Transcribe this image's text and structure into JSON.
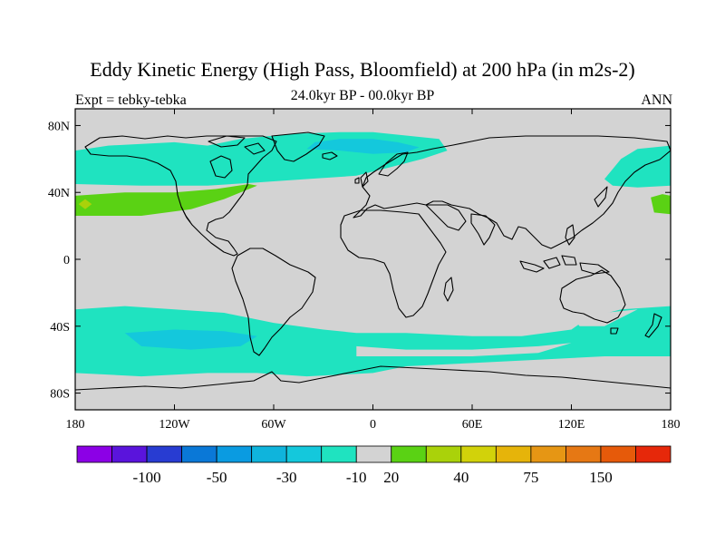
{
  "title": "Eddy Kinetic Energy (High Pass, Bloomfield) at 200 hPa (in m2s-2)",
  "subtitle_left": "Expt = tebky-tebka",
  "subtitle_center": "24.0kyr BP - 00.0kyr BP",
  "subtitle_right": "ANN",
  "colors": {
    "land_outline": "#000000",
    "zero_band": "#d3d3d3",
    "neg_10": "#1fe3c0",
    "neg_30": "#14c8dc",
    "pos_20": "#5ad214",
    "pos_40": "#aad20a"
  },
  "chart_data": {
    "type": "heatmap",
    "projection": "cylindrical-equidistant",
    "lon_range": [
      -180,
      180
    ],
    "lat_range": [
      -90,
      90
    ],
    "x_ticks": [
      {
        "value": -180,
        "label": "180"
      },
      {
        "value": -120,
        "label": "120W"
      },
      {
        "value": -60,
        "label": "60W"
      },
      {
        "value": 0,
        "label": "0"
      },
      {
        "value": 60,
        "label": "60E"
      },
      {
        "value": 120,
        "label": "120E"
      },
      {
        "value": 180,
        "label": "180"
      }
    ],
    "y_ticks": [
      {
        "value": 80,
        "label": "80N"
      },
      {
        "value": 40,
        "label": "40N"
      },
      {
        "value": 0,
        "label": "0"
      },
      {
        "value": -40,
        "label": "40S"
      },
      {
        "value": -80,
        "label": "80S"
      }
    ],
    "colorbar": {
      "colors": [
        "#8c00e6",
        "#5a14dc",
        "#283cd2",
        "#0a78d7",
        "#0a9be1",
        "#0fb4dc",
        "#14c8dc",
        "#1fe3c0",
        "#d3d3d3",
        "#5ad214",
        "#aad20a",
        "#d2d20a",
        "#e6b40a",
        "#e69614",
        "#e67814",
        "#e65a0a",
        "#e6280a"
      ],
      "labels": [
        {
          "after_box": 2,
          "text": "-100"
        },
        {
          "after_box": 4,
          "text": "-50"
        },
        {
          "after_box": 6,
          "text": "-30"
        },
        {
          "after_box": 8,
          "text": "-10"
        },
        {
          "after_box": 9,
          "text": "20"
        },
        {
          "after_box": 11,
          "text": "40"
        },
        {
          "after_box": 13,
          "text": "75"
        },
        {
          "after_box": 15,
          "text": "150"
        }
      ]
    },
    "regions": [
      {
        "level": -10,
        "color": "#1fe3c0",
        "points": [
          [
            -180,
            65
          ],
          [
            -160,
            68
          ],
          [
            -120,
            70
          ],
          [
            -100,
            68
          ],
          [
            -80,
            72
          ],
          [
            -50,
            75
          ],
          [
            -20,
            76
          ],
          [
            0,
            76
          ],
          [
            20,
            74
          ],
          [
            40,
            72
          ],
          [
            45,
            65
          ],
          [
            30,
            60
          ],
          [
            10,
            55
          ],
          [
            -10,
            50
          ],
          [
            -40,
            48
          ],
          [
            -70,
            46
          ],
          [
            -100,
            44
          ],
          [
            -140,
            44
          ],
          [
            -180,
            45
          ]
        ]
      },
      {
        "level": -30,
        "color": "#14c8dc",
        "points": [
          [
            -40,
            66
          ],
          [
            -20,
            65
          ],
          [
            0,
            63
          ],
          [
            20,
            64
          ],
          [
            28,
            67
          ],
          [
            15,
            70
          ],
          [
            0,
            72
          ],
          [
            -20,
            72
          ],
          [
            -35,
            70
          ]
        ]
      },
      {
        "level": -10,
        "color": "#1fe3c0",
        "points": [
          [
            140,
            48
          ],
          [
            150,
            60
          ],
          [
            160,
            66
          ],
          [
            180,
            68
          ],
          [
            180,
            44
          ],
          [
            160,
            43
          ],
          [
            145,
            44
          ]
        ]
      },
      {
        "level": 20,
        "color": "#5ad214",
        "points": [
          [
            -180,
            38
          ],
          [
            -150,
            40
          ],
          [
            -120,
            40
          ],
          [
            -95,
            42
          ],
          [
            -75,
            45
          ],
          [
            -70,
            44
          ],
          [
            -90,
            36
          ],
          [
            -110,
            30
          ],
          [
            -140,
            26
          ],
          [
            -180,
            26
          ]
        ]
      },
      {
        "level": 40,
        "color": "#aad20a",
        "points": [
          [
            -178,
            33
          ],
          [
            -174,
            36
          ],
          [
            -170,
            33
          ],
          [
            -174,
            30
          ]
        ]
      },
      {
        "level": 20,
        "color": "#5ad214",
        "points": [
          [
            168,
            37
          ],
          [
            175,
            39
          ],
          [
            180,
            38
          ],
          [
            180,
            27
          ],
          [
            170,
            28
          ]
        ]
      },
      {
        "level": -10,
        "color": "#1fe3c0",
        "points": [
          [
            -180,
            -30
          ],
          [
            -150,
            -28
          ],
          [
            -120,
            -30
          ],
          [
            -90,
            -32
          ],
          [
            -60,
            -38
          ],
          [
            -30,
            -42
          ],
          [
            -10,
            -44
          ],
          [
            20,
            -44
          ],
          [
            60,
            -46
          ],
          [
            90,
            -46
          ],
          [
            120,
            -42
          ],
          [
            130,
            -35
          ],
          [
            150,
            -30
          ],
          [
            180,
            -28
          ],
          [
            180,
            -58
          ],
          [
            140,
            -58
          ],
          [
            100,
            -60
          ],
          [
            60,
            -62
          ],
          [
            20,
            -64
          ],
          [
            0,
            -68
          ],
          [
            -40,
            -70
          ],
          [
            -70,
            -68
          ],
          [
            -100,
            -68
          ],
          [
            -140,
            -70
          ],
          [
            -180,
            -68
          ]
        ]
      },
      {
        "level": 0,
        "color": "#d3d3d3",
        "points": [
          [
            -10,
            -52
          ],
          [
            20,
            -54
          ],
          [
            60,
            -54
          ],
          [
            100,
            -52
          ],
          [
            120,
            -50
          ],
          [
            100,
            -56
          ],
          [
            60,
            -58
          ],
          [
            20,
            -58
          ],
          [
            -10,
            -58
          ]
        ]
      },
      {
        "level": -30,
        "color": "#14c8dc",
        "points": [
          [
            -150,
            -44
          ],
          [
            -120,
            -42
          ],
          [
            -90,
            -43
          ],
          [
            -70,
            -46
          ],
          [
            -80,
            -52
          ],
          [
            -110,
            -54
          ],
          [
            -140,
            -52
          ]
        ]
      },
      {
        "level": 0,
        "color": "#d3d3d3",
        "points": [
          [
            120,
            -34
          ],
          [
            140,
            -32
          ],
          [
            160,
            -30
          ],
          [
            140,
            -40
          ],
          [
            125,
            -40
          ]
        ]
      }
    ]
  }
}
